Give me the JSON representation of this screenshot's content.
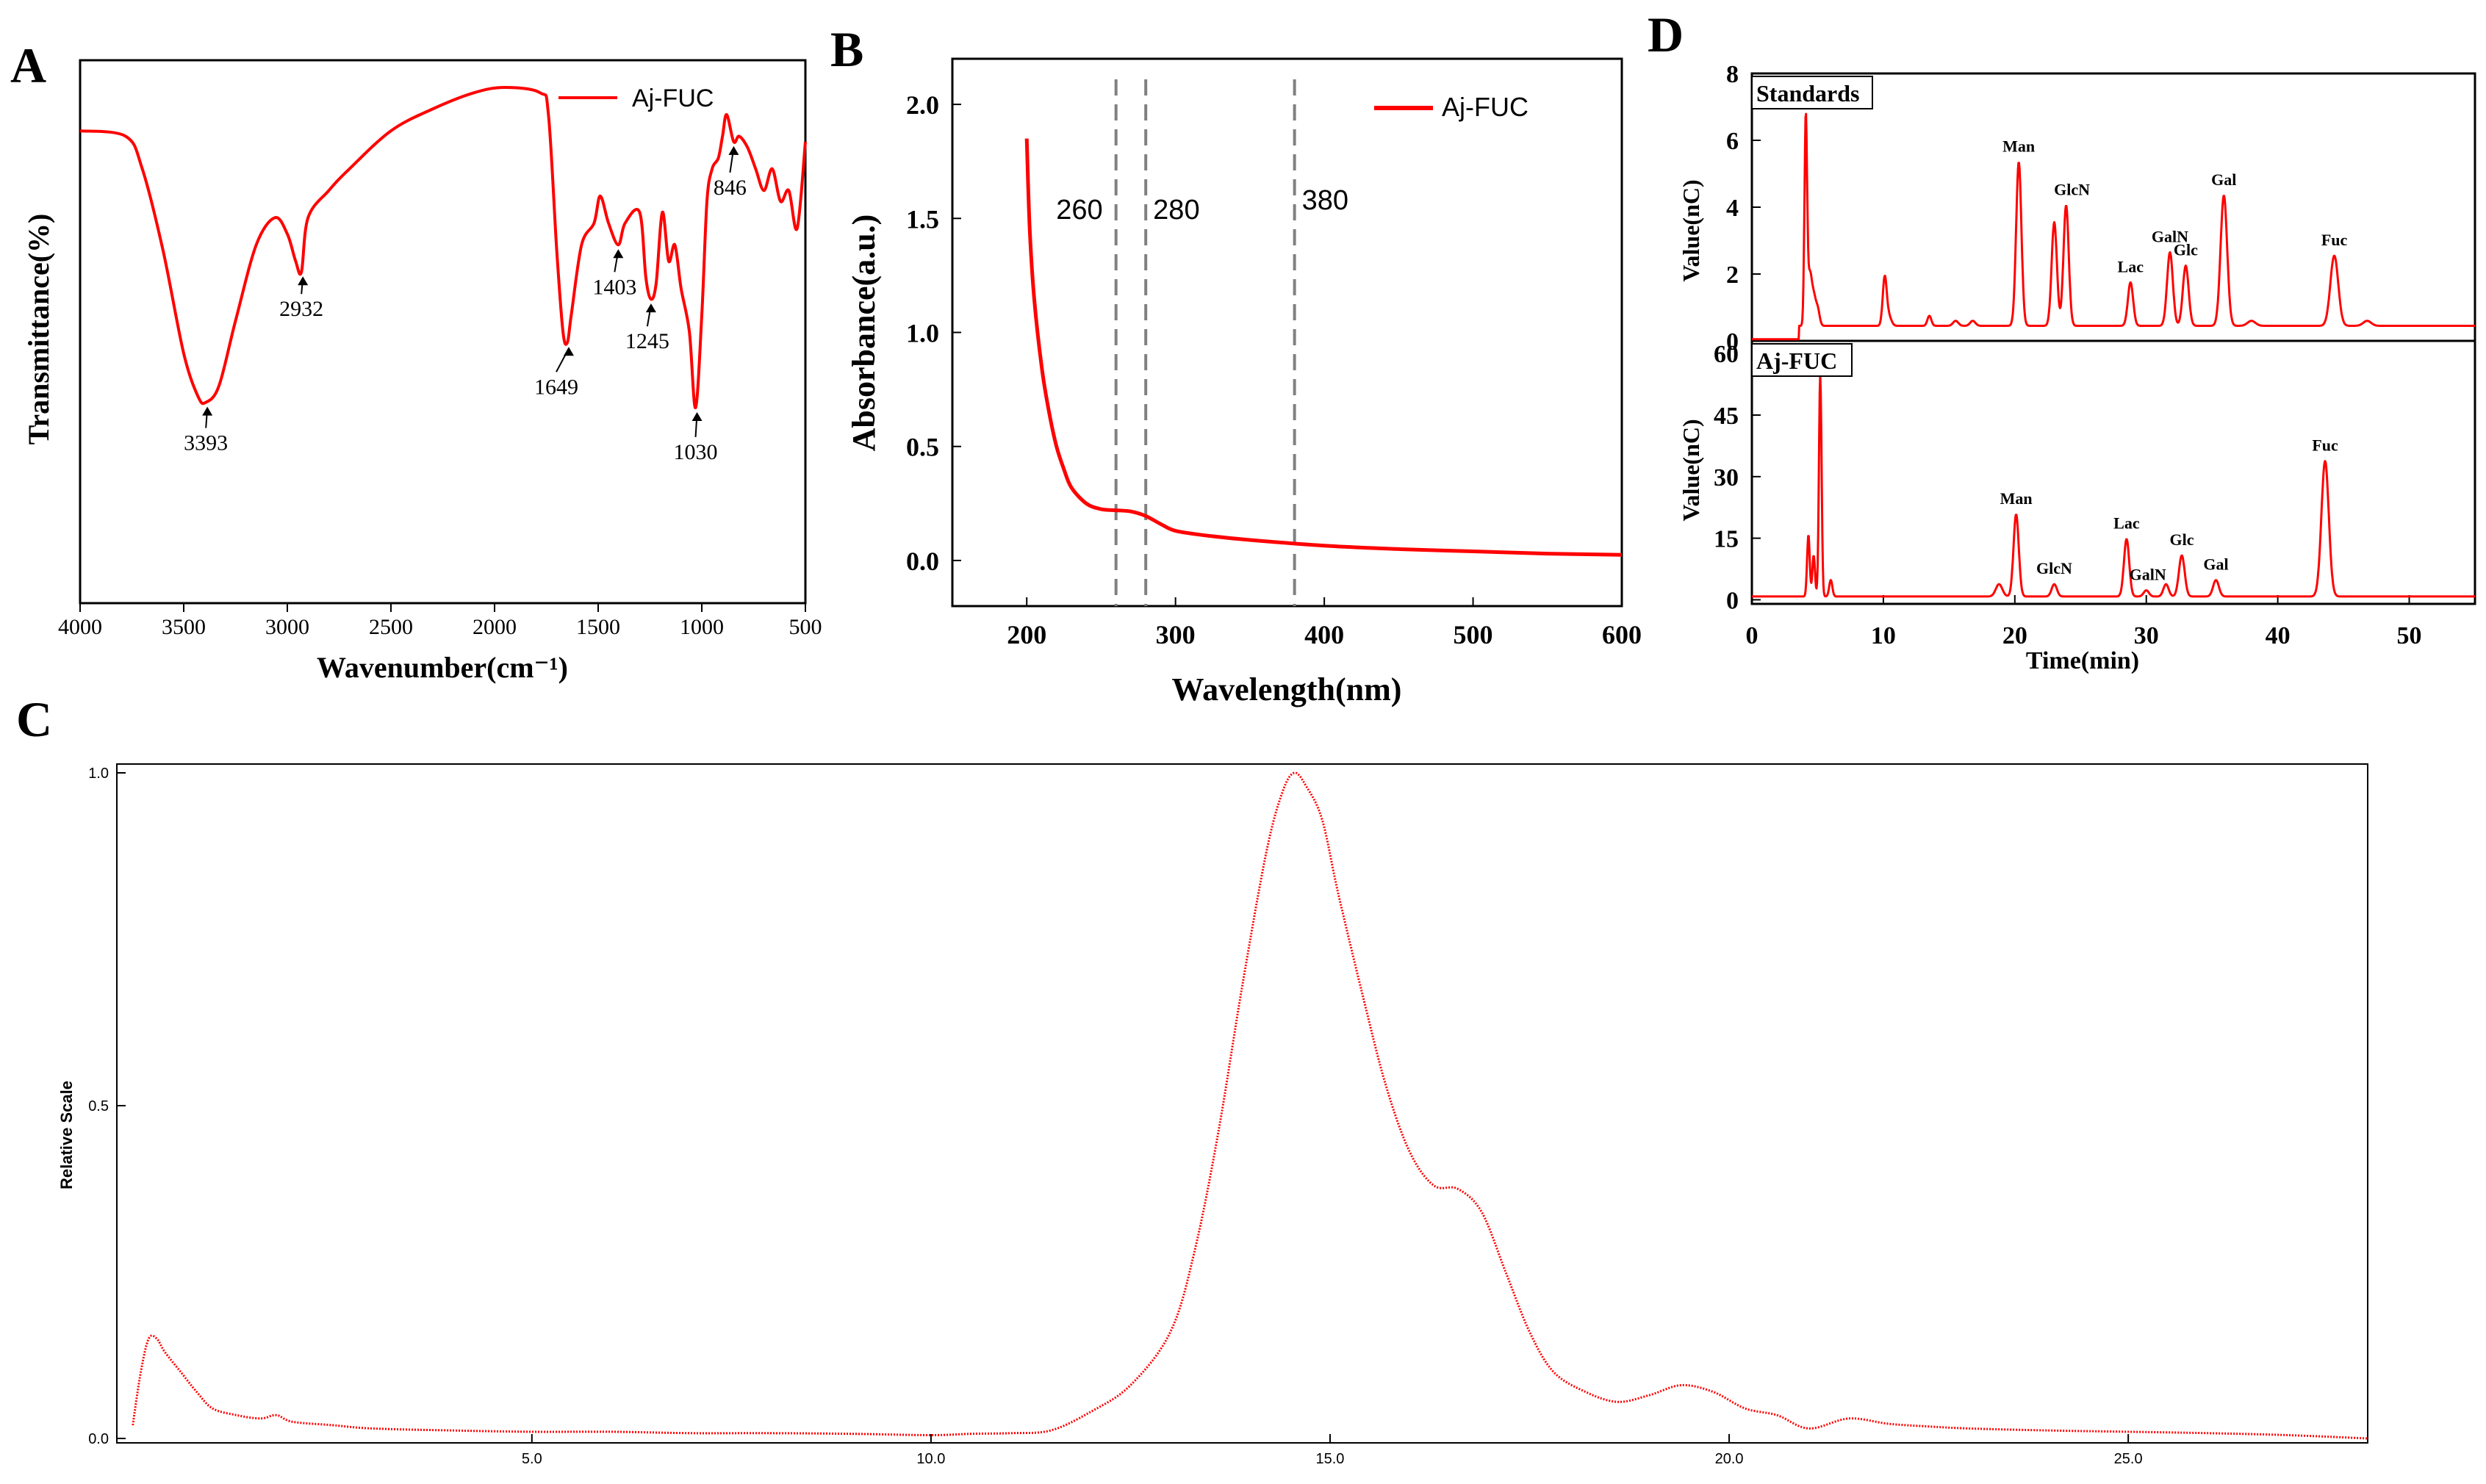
{
  "chart_data": [
    {
      "panel": "A",
      "type": "line",
      "xlabel": "Wavenumber(cm⁻¹)",
      "ylabel": "Transmittance(%)",
      "xlim": [
        4000,
        500
      ],
      "ylim": [
        0,
        1
      ],
      "xticks": [
        4000,
        3500,
        3000,
        2500,
        2000,
        1500,
        1000,
        500
      ],
      "yticks_shown": false,
      "legend": "Aj-FUC",
      "series": [
        {
          "name": "Aj-FUC",
          "x": [
            4000,
            3780,
            3700,
            3600,
            3500,
            3430,
            3393,
            3330,
            3250,
            3150,
            3060,
            3000,
            2960,
            2932,
            2900,
            2800,
            2700,
            2500,
            2300,
            2100,
            1950,
            1780,
            1740,
            1700,
            1670,
            1649,
            1630,
            1580,
            1520,
            1490,
            1450,
            1403,
            1370,
            1300,
            1270,
            1245,
            1220,
            1190,
            1160,
            1130,
            1100,
            1060,
            1030,
            1000,
            975,
            950,
            920,
            900,
            880,
            846,
            820,
            780,
            740,
            700,
            660,
            620,
            580,
            540,
            500
          ],
          "y": [
            0.87,
            0.86,
            0.8,
            0.65,
            0.46,
            0.38,
            0.37,
            0.4,
            0.52,
            0.66,
            0.71,
            0.68,
            0.63,
            0.61,
            0.71,
            0.76,
            0.8,
            0.87,
            0.91,
            0.94,
            0.95,
            0.94,
            0.9,
            0.65,
            0.5,
            0.48,
            0.53,
            0.66,
            0.7,
            0.75,
            0.7,
            0.66,
            0.7,
            0.72,
            0.6,
            0.56,
            0.59,
            0.72,
            0.63,
            0.66,
            0.58,
            0.5,
            0.36,
            0.53,
            0.74,
            0.8,
            0.82,
            0.86,
            0.9,
            0.85,
            0.86,
            0.84,
            0.8,
            0.76,
            0.8,
            0.74,
            0.76,
            0.69,
            0.85
          ]
        }
      ],
      "annotations": [
        {
          "label": "3393",
          "x": 3393,
          "y": 0.37
        },
        {
          "label": "2932",
          "x": 2932,
          "y": 0.61
        },
        {
          "label": "1649",
          "x": 1649,
          "y": 0.48
        },
        {
          "label": "1403",
          "x": 1403,
          "y": 0.66
        },
        {
          "label": "1245",
          "x": 1245,
          "y": 0.56
        },
        {
          "label": "1030",
          "x": 1030,
          "y": 0.36
        },
        {
          "label": "846",
          "x": 846,
          "y": 0.85
        }
      ]
    },
    {
      "panel": "B",
      "type": "line",
      "xlabel": "Wavelength(nm)",
      "ylabel": "Absorbance(a.u.)",
      "xlim": [
        150,
        600
      ],
      "ylim": [
        -0.2,
        2.2
      ],
      "xticks": [
        200,
        300,
        400,
        500,
        600
      ],
      "yticks": [
        0.0,
        0.5,
        1.0,
        1.5,
        2.0
      ],
      "ytick_labels": [
        "0.0",
        "0.5",
        "1.0",
        "1.5",
        "2.0"
      ],
      "legend": "Aj-FUC",
      "reference_lines": [
        {
          "x": 260,
          "label": "260"
        },
        {
          "x": 280,
          "label": "280"
        },
        {
          "x": 380,
          "label": "380"
        }
      ],
      "series": [
        {
          "name": "Aj-FUC",
          "x": [
            200,
            202,
            205,
            210,
            215,
            220,
            225,
            230,
            240,
            250,
            260,
            270,
            280,
            290,
            300,
            320,
            350,
            400,
            450,
            500,
            550,
            600
          ],
          "y": [
            1.85,
            1.45,
            1.15,
            0.85,
            0.65,
            0.5,
            0.4,
            0.32,
            0.25,
            0.225,
            0.22,
            0.215,
            0.195,
            0.16,
            0.13,
            0.11,
            0.09,
            0.065,
            0.05,
            0.04,
            0.03,
            0.025
          ]
        }
      ]
    },
    {
      "panel": "C",
      "type": "line",
      "xlabel": "",
      "ylabel": "Relative Scale",
      "xlim": [
        -0.2,
        28
      ],
      "ylim": [
        0,
        1
      ],
      "xticks": [
        5,
        10,
        15,
        20,
        25
      ],
      "xtick_labels": [
        "5.0",
        "10.0",
        "15.0",
        "20.0",
        "25.0"
      ],
      "yticks": [
        0,
        0.5,
        1
      ],
      "ytick_labels": [
        "0.0",
        "0.5",
        "1.0"
      ],
      "series": [
        {
          "name": "Aj-FUC",
          "x": [
            0,
            0.1,
            0.2,
            0.3,
            0.4,
            0.6,
            0.8,
            1.0,
            1.3,
            1.6,
            1.8,
            2.0,
            2.5,
            3,
            4,
            5,
            6,
            7,
            8,
            9,
            10,
            10.5,
            11,
            11.5,
            12,
            12.5,
            13,
            13.3,
            13.6,
            13.9,
            14.2,
            14.4,
            14.55,
            14.7,
            14.9,
            15.1,
            15.4,
            15.7,
            16.0,
            16.3,
            16.6,
            16.9,
            17.2,
            17.5,
            17.8,
            18.2,
            18.6,
            19.0,
            19.4,
            19.8,
            20.2,
            20.6,
            21.0,
            21.5,
            22.0,
            22.5,
            23,
            24,
            25,
            26,
            27,
            28
          ],
          "y": [
            0.02,
            0.1,
            0.15,
            0.15,
            0.13,
            0.1,
            0.07,
            0.045,
            0.035,
            0.03,
            0.035,
            0.025,
            0.02,
            0.015,
            0.012,
            0.01,
            0.01,
            0.008,
            0.008,
            0.007,
            0.005,
            0.007,
            0.008,
            0.012,
            0.04,
            0.08,
            0.16,
            0.28,
            0.46,
            0.68,
            0.88,
            0.97,
            1.0,
            0.98,
            0.93,
            0.82,
            0.67,
            0.53,
            0.43,
            0.38,
            0.375,
            0.34,
            0.25,
            0.16,
            0.1,
            0.07,
            0.055,
            0.065,
            0.08,
            0.07,
            0.045,
            0.035,
            0.015,
            0.03,
            0.022,
            0.018,
            0.015,
            0.012,
            0.01,
            0.008,
            0.005,
            0.0
          ]
        }
      ]
    },
    {
      "panel": "D",
      "type": "line",
      "subplots": [
        {
          "title": "Standards",
          "ylabel": "Value(nC)",
          "ylim": [
            0,
            8
          ],
          "yticks": [
            0,
            2,
            4,
            6,
            8
          ],
          "xlim": [
            0,
            55
          ],
          "peaks": [
            {
              "x": 4.1,
              "y": 6.2,
              "w": 0.1
            },
            {
              "x": 4.4,
              "y": 1.5,
              "w": 0.15
            },
            {
              "x": 4.7,
              "y": 0.8,
              "w": 0.15
            },
            {
              "x": 5.0,
              "y": 0.5,
              "w": 0.15
            },
            {
              "x": 10.1,
              "y": 1.4,
              "w": 0.15
            },
            {
              "x": 10.4,
              "y": 0.3,
              "w": 0.2
            },
            {
              "x": 13.5,
              "y": 0.3,
              "w": 0.15
            },
            {
              "x": 15.5,
              "y": 0.15,
              "w": 0.2
            },
            {
              "x": 16.8,
              "y": 0.15,
              "w": 0.2
            },
            {
              "x": 20.3,
              "y": 4.9,
              "w": 0.2,
              "label": "Man"
            },
            {
              "x": 23.0,
              "y": 3.1,
              "w": 0.2
            },
            {
              "x": 23.9,
              "y": 3.6,
              "w": 0.2,
              "label": "GlcN"
            },
            {
              "x": 28.8,
              "y": 1.3,
              "w": 0.2,
              "label": "Lac"
            },
            {
              "x": 31.8,
              "y": 2.2,
              "w": 0.22,
              "label": "GalN"
            },
            {
              "x": 33.0,
              "y": 1.8,
              "w": 0.22,
              "label": "Glc"
            },
            {
              "x": 35.9,
              "y": 3.9,
              "w": 0.25,
              "label": "Gal"
            },
            {
              "x": 38.0,
              "y": 0.15,
              "w": 0.3
            },
            {
              "x": 44.3,
              "y": 2.1,
              "w": 0.3,
              "label": "Fuc"
            },
            {
              "x": 46.8,
              "y": 0.15,
              "w": 0.3
            }
          ],
          "baseline": 0.05
        },
        {
          "title": "Aj-FUC",
          "ylabel": "Value(nC)",
          "xlabel": "Time(min)",
          "ylim": [
            0,
            60
          ],
          "yticks": [
            0,
            15,
            30,
            45,
            60
          ],
          "xlim": [
            0,
            55
          ],
          "xticks": [
            0,
            10,
            20,
            30,
            40,
            50
          ],
          "peaks": [
            {
              "x": 4.3,
              "y": 15,
              "w": 0.1
            },
            {
              "x": 4.7,
              "y": 10,
              "w": 0.1
            },
            {
              "x": 5.2,
              "y": 54,
              "w": 0.1
            },
            {
              "x": 6.0,
              "y": 4,
              "w": 0.12
            },
            {
              "x": 18.8,
              "y": 3,
              "w": 0.25
            },
            {
              "x": 20.1,
              "y": 20,
              "w": 0.2,
              "label": "Man"
            },
            {
              "x": 23.0,
              "y": 3,
              "w": 0.2,
              "label": "GlcN"
            },
            {
              "x": 28.5,
              "y": 14,
              "w": 0.2,
              "label": "Lac"
            },
            {
              "x": 30.0,
              "y": 1.5,
              "w": 0.2,
              "label": "GalN"
            },
            {
              "x": 31.5,
              "y": 3,
              "w": 0.2
            },
            {
              "x": 32.7,
              "y": 10,
              "w": 0.22,
              "label": "Glc"
            },
            {
              "x": 35.3,
              "y": 4,
              "w": 0.22,
              "label": "Gal"
            },
            {
              "x": 43.6,
              "y": 33,
              "w": 0.28,
              "label": "Fuc"
            }
          ],
          "baseline": 0.8
        }
      ]
    }
  ],
  "panel_letters": {
    "A": "A",
    "B": "B",
    "C": "C",
    "D": "D"
  },
  "colors": {
    "series": "#ff0000",
    "axis": "#000000",
    "reference_line": "#808080"
  }
}
